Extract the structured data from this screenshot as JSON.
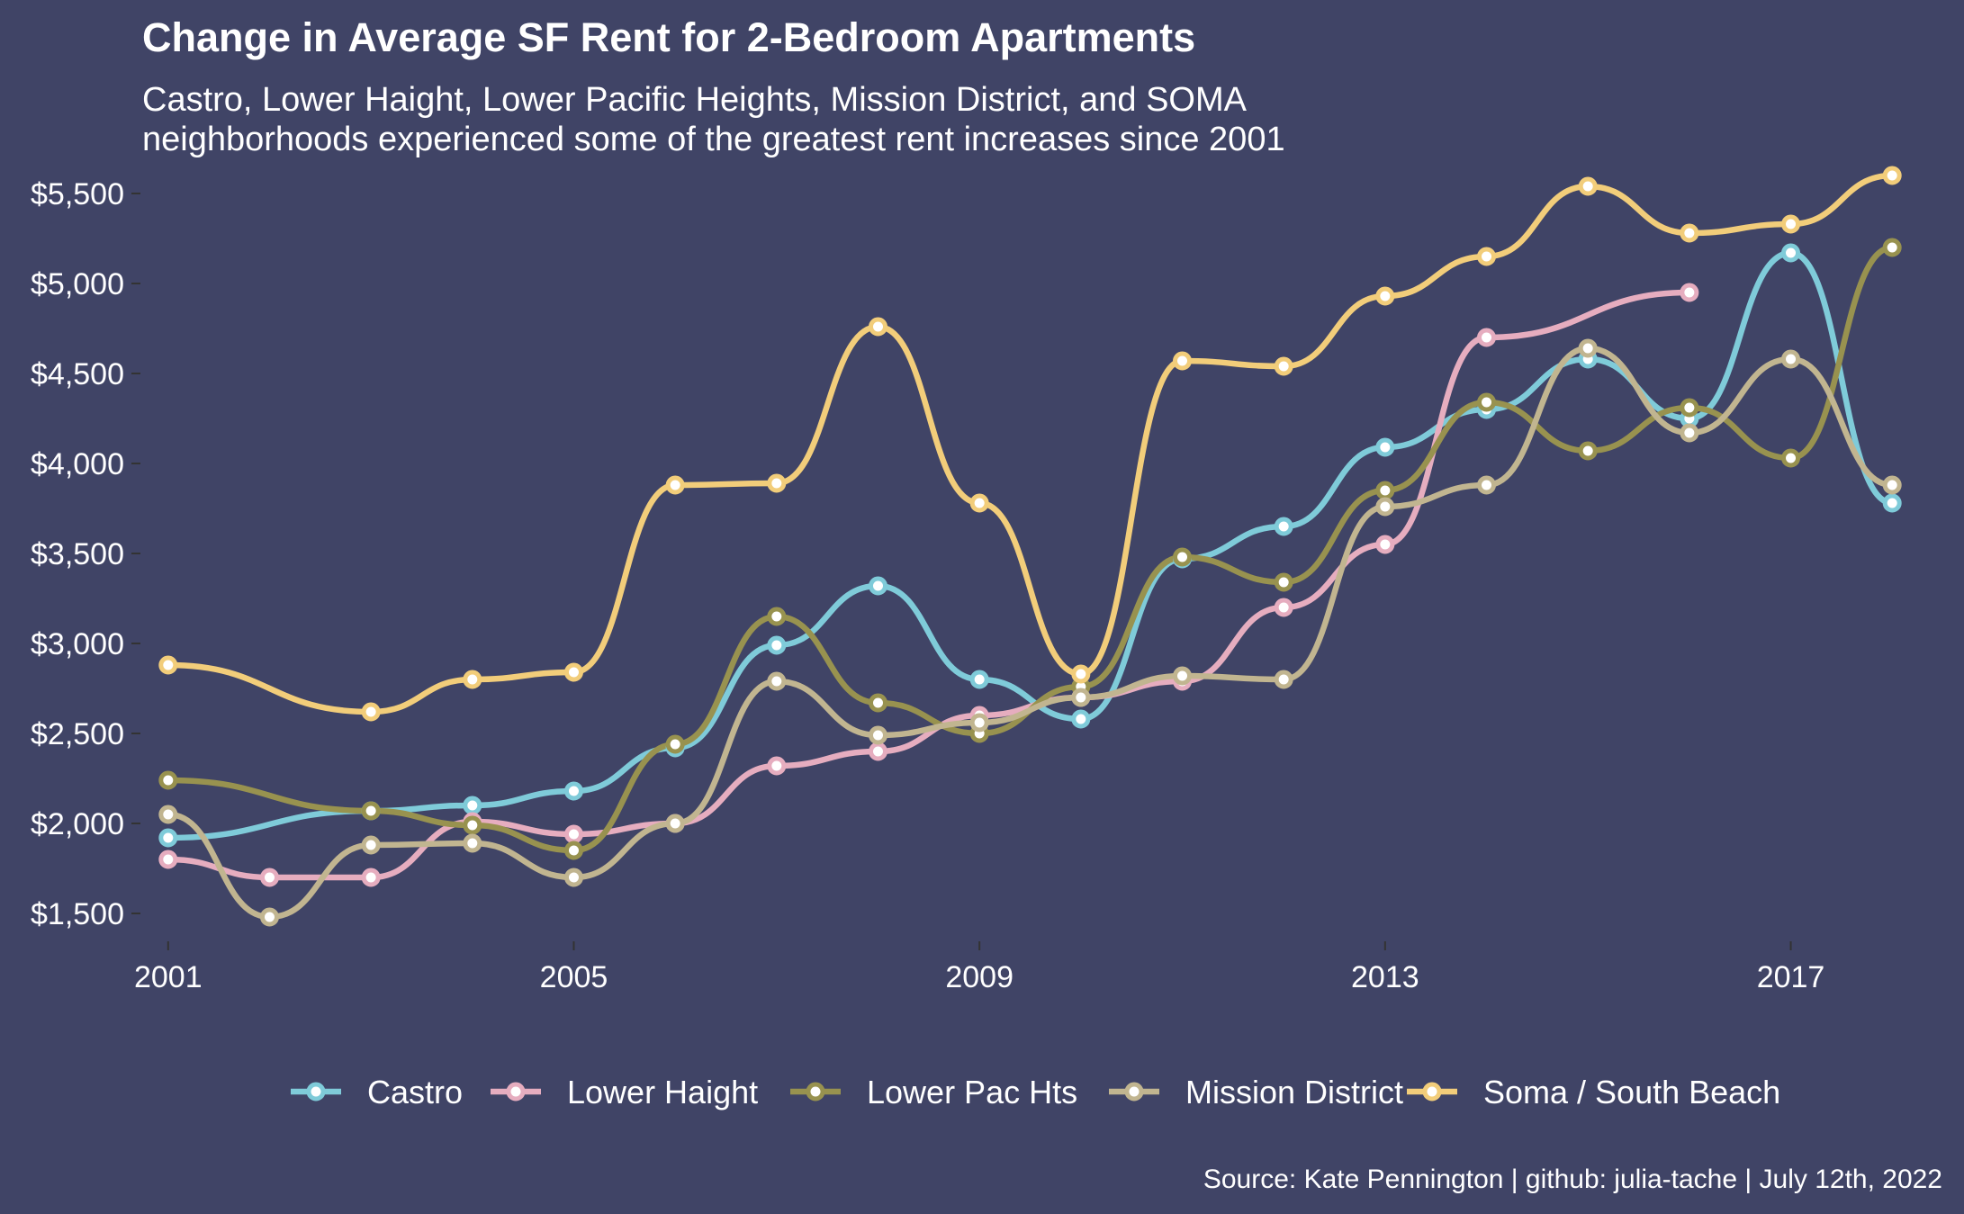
{
  "colors": {
    "background": "#404466",
    "series": {
      "Castro": "#7fcbd9",
      "Lower Haight": "#e6adbf",
      "Lower Pac Hts": "#98924f",
      "Mission District": "#c1b590",
      "Soma / South Beach": "#f2cd7a"
    },
    "point_fill": "#ffffff"
  },
  "chart_data": {
    "type": "line",
    "title": "Change in Average SF Rent for 2-Bedroom Apartments",
    "subtitle_lines": [
      "Castro, Lower Haight, Lower Pacific Heights, Mission District, and SOMA",
      "neighborhoods experienced some of the greatest rent increases since 2001"
    ],
    "caption": "Source: Kate Pennington | github: julia-tache | July 12th, 2022",
    "xlabel": "",
    "ylabel": "",
    "xlim": [
      2000.7,
      2018.3
    ],
    "ylim": [
      1250,
      5700
    ],
    "x_ticks": [
      2001,
      2005,
      2009,
      2013,
      2017
    ],
    "x_tick_labels": [
      "2001",
      "2005",
      "2009",
      "2013",
      "2017"
    ],
    "y_ticks": [
      1500,
      2000,
      2500,
      3000,
      3500,
      4000,
      4500,
      5000,
      5500
    ],
    "y_tick_labels": [
      "$1,500",
      "$2,000",
      "$2,500",
      "$3,000",
      "$3,500",
      "$4,000",
      "$4,500",
      "$5,000",
      "$5,500"
    ],
    "grid": false,
    "legend_position": "bottom",
    "legend_labels": [
      "Castro",
      "Lower Haight",
      "Lower Pac Hts",
      "Mission District",
      "Soma / South Beach"
    ],
    "series": [
      {
        "name": "Castro",
        "x": [
          2001,
          2003,
          2004,
          2005,
          2006,
          2007,
          2008,
          2009,
          2010,
          2011,
          2012,
          2013,
          2014,
          2015,
          2016,
          2017,
          2018
        ],
        "values": [
          1920,
          2070,
          2100,
          2180,
          2420,
          2990,
          3320,
          2800,
          2580,
          3470,
          3650,
          4090,
          4300,
          4580,
          4250,
          5170,
          3780
        ]
      },
      {
        "name": "Lower Haight",
        "x": [
          2001,
          2002,
          2003,
          2004,
          2005,
          2006,
          2007,
          2008,
          2009,
          2010,
          2011,
          2012,
          2013,
          2014,
          2016
        ],
        "values": [
          1800,
          1700,
          1700,
          2010,
          1940,
          2000,
          2320,
          2400,
          2600,
          2700,
          2790,
          3200,
          3550,
          4700,
          4950
        ]
      },
      {
        "name": "Lower Pac Hts",
        "x": [
          2001,
          2003,
          2004,
          2005,
          2006,
          2007,
          2008,
          2009,
          2010,
          2011,
          2012,
          2013,
          2014,
          2015,
          2016,
          2017,
          2018
        ],
        "values": [
          2240,
          2070,
          1990,
          1850,
          2440,
          3150,
          2670,
          2500,
          2760,
          3480,
          3340,
          3850,
          4340,
          4070,
          4310,
          4030,
          5200
        ]
      },
      {
        "name": "Mission District",
        "x": [
          2001,
          2002,
          2003,
          2004,
          2005,
          2006,
          2007,
          2008,
          2009,
          2010,
          2011,
          2012,
          2013,
          2014,
          2015,
          2016,
          2017,
          2018
        ],
        "values": [
          2050,
          1480,
          1880,
          1890,
          1700,
          2000,
          2790,
          2490,
          2560,
          2700,
          2820,
          2800,
          3760,
          3880,
          4640,
          4170,
          4580,
          3880
        ]
      },
      {
        "name": "Soma / South Beach",
        "x": [
          2001,
          2003,
          2004,
          2005,
          2006,
          2007,
          2008,
          2009,
          2010,
          2011,
          2012,
          2013,
          2014,
          2015,
          2016,
          2017,
          2018
        ],
        "values": [
          2880,
          2620,
          2800,
          2840,
          3880,
          3890,
          4760,
          3780,
          2830,
          4570,
          4540,
          4930,
          5150,
          5540,
          5280,
          5330,
          5600
        ]
      }
    ]
  }
}
